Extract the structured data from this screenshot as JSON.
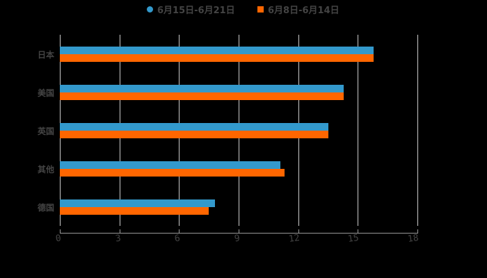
{
  "chart_data": {
    "type": "bar",
    "orientation": "horizontal",
    "title": "",
    "xlabel": "",
    "ylabel": "",
    "categories": [
      "日本",
      "美国",
      "英国",
      "其他",
      "德国"
    ],
    "series": [
      {
        "name": "6月15日-6月21日",
        "color": "#3399cc",
        "marker": "circle",
        "values": [
          15.8,
          14.3,
          13.5,
          11.1,
          7.8
        ]
      },
      {
        "name": "6月8日-6月14日",
        "color": "#ff6600",
        "marker": "square",
        "values": [
          15.8,
          14.3,
          13.5,
          11.3,
          7.5
        ]
      }
    ],
    "xlim": [
      0,
      18
    ],
    "xticks": [
      0,
      3,
      6,
      9,
      12,
      15,
      18
    ],
    "grid": true,
    "legend_position": "top",
    "background": "#000000"
  },
  "legend": {
    "items": [
      {
        "label": "6月15日-6月21日",
        "color": "#3399cc"
      },
      {
        "label": "6月8日-6月14日",
        "color": "#ff6600"
      }
    ]
  },
  "axis": {
    "tick_labels": [
      "0",
      "3",
      "6",
      "9",
      "12",
      "15",
      "18"
    ]
  }
}
